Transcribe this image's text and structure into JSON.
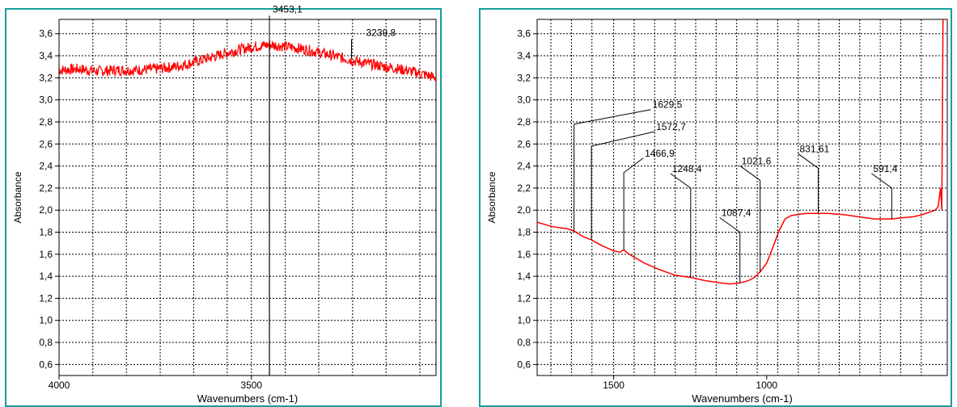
{
  "charts": [
    {
      "id": "left",
      "chart_data": {
        "type": "line",
        "title": "",
        "xlabel": "Wavenumbers (cm-1)",
        "ylabel": "Absorbance",
        "xlim": [
          4000,
          3020
        ],
        "ylim": [
          0.5,
          3.73
        ],
        "x_ticks": [
          4000,
          3500
        ],
        "x_tick_labels": [
          "4000",
          "3500"
        ],
        "y_ticks": [
          0.6,
          0.8,
          1.0,
          1.2,
          1.4,
          1.6,
          1.8,
          2.0,
          2.2,
          2.4,
          2.6,
          2.8,
          3.0,
          3.2,
          3.4,
          3.6
        ],
        "y_tick_labels": [
          "0,6",
          "0,8",
          "1,0",
          "1,2",
          "1,4",
          "1,6",
          "1,8",
          "2,0",
          "2,2",
          "2,4",
          "2,6",
          "2,8",
          "3,0",
          "3,2",
          "3,4",
          "3,6"
        ],
        "grid": true,
        "noise": 0.05,
        "series": [
          {
            "color": "#ff0000",
            "x": [
              4000,
              3950,
              3900,
              3850,
              3800,
              3750,
              3700,
              3650,
              3600,
              3550,
              3500,
              3453.1,
              3400,
              3350,
              3300,
              3239.8,
              3200,
              3150,
              3100,
              3050,
              3020
            ],
            "y": [
              3.27,
              3.28,
              3.26,
              3.27,
              3.27,
              3.28,
              3.3,
              3.34,
              3.39,
              3.44,
              3.48,
              3.5,
              3.48,
              3.45,
              3.41,
              3.36,
              3.33,
              3.3,
              3.27,
              3.23,
              3.2
            ]
          }
        ],
        "annotations": [
          {
            "label": "3453,1",
            "x": 3453.1,
            "y": 3.5
          },
          {
            "label": "3239,8",
            "x": 3239.8,
            "y": 3.36
          }
        ]
      }
    },
    {
      "id": "right",
      "chart_data": {
        "type": "line",
        "title": "",
        "xlabel": "Wavenumbers (cm-1)",
        "ylabel": "Absorbance",
        "xlim": [
          1750,
          410
        ],
        "ylim": [
          0.5,
          3.73
        ],
        "x_ticks": [
          1500,
          1000
        ],
        "x_tick_labels": [
          "1500",
          "1000"
        ],
        "y_ticks": [
          0.6,
          0.8,
          1.0,
          1.2,
          1.4,
          1.6,
          1.8,
          2.0,
          2.2,
          2.4,
          2.6,
          2.8,
          3.0,
          3.2,
          3.4,
          3.6
        ],
        "y_tick_labels": [
          "0,6",
          "0,8",
          "1,0",
          "1,2",
          "1,4",
          "1,6",
          "1,8",
          "2,0",
          "2,2",
          "2,4",
          "2,6",
          "2,8",
          "3,0",
          "3,2",
          "3,4",
          "3,6"
        ],
        "grid": true,
        "series": [
          {
            "color": "#ff0000",
            "x": [
              1750,
              1700,
              1650,
              1629.5,
              1600,
              1572.7,
              1540,
              1500,
              1480,
              1466.9,
              1450,
              1400,
              1350,
              1300,
              1248.4,
              1200,
              1150,
              1120,
              1087.4,
              1060,
              1040,
              1021.6,
              1000,
              980,
              960,
              940,
              920,
              900,
              870,
              831.6,
              800,
              750,
              700,
              650,
              600,
              591.4,
              560,
              520,
              490,
              470,
              450,
              440,
              432,
              428,
              424,
              418,
              414,
              410
            ],
            "y": [
              1.89,
              1.85,
              1.83,
              1.81,
              1.76,
              1.73,
              1.68,
              1.63,
              1.62,
              1.64,
              1.6,
              1.52,
              1.46,
              1.41,
              1.39,
              1.36,
              1.34,
              1.33,
              1.34,
              1.36,
              1.39,
              1.44,
              1.52,
              1.66,
              1.81,
              1.92,
              1.95,
              1.96,
              1.97,
              1.97,
              1.97,
              1.96,
              1.94,
              1.92,
              1.92,
              1.92,
              1.93,
              1.94,
              1.96,
              1.98,
              2.0,
              2.03,
              2.2,
              2.0,
              3.73,
              3.73,
              3.73,
              3.73
            ]
          }
        ],
        "annotations": [
          {
            "label": "1629,5",
            "x": 1629.5,
            "y": 1.81
          },
          {
            "label": "1572,7",
            "x": 1572.7,
            "y": 1.73
          },
          {
            "label": "1466,9",
            "x": 1466.9,
            "y": 1.64
          },
          {
            "label": "1248,4",
            "x": 1248.4,
            "y": 1.39
          },
          {
            "label": "1087,4",
            "x": 1087.4,
            "y": 1.34
          },
          {
            "label": "1021,6",
            "x": 1021.6,
            "y": 1.44
          },
          {
            "label": "831,61",
            "x": 831.6,
            "y": 1.97
          },
          {
            "label": "591,4",
            "x": 591.4,
            "y": 1.92
          }
        ]
      }
    }
  ]
}
